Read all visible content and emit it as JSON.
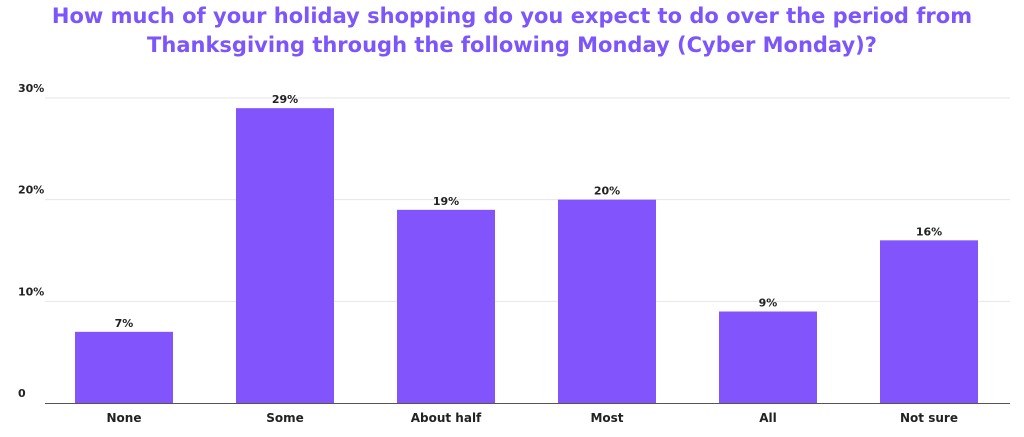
{
  "chart_data": {
    "type": "bar",
    "title_lines": [
      "How much of your holiday shopping do you expect to do over the period from",
      "Thanksgiving through the following Monday (Cyber Monday)?"
    ],
    "categories": [
      "None",
      "Some",
      "About half",
      "Most",
      "All",
      "Not sure"
    ],
    "values": [
      7,
      29,
      19,
      20,
      9,
      16
    ],
    "data_labels": [
      "7%",
      "29%",
      "19%",
      "20%",
      "9%",
      "16%"
    ],
    "y_ticks": [
      {
        "value": 0,
        "label": "0"
      },
      {
        "value": 10,
        "label": "10%"
      },
      {
        "value": 20,
        "label": "20%"
      },
      {
        "value": 30,
        "label": "30%"
      }
    ],
    "ylim": [
      0,
      30
    ],
    "xlabel": "",
    "ylabel": "",
    "grid": true,
    "legend": "none",
    "bar_color": "#8155fb",
    "title_color": "#7c55fb"
  }
}
